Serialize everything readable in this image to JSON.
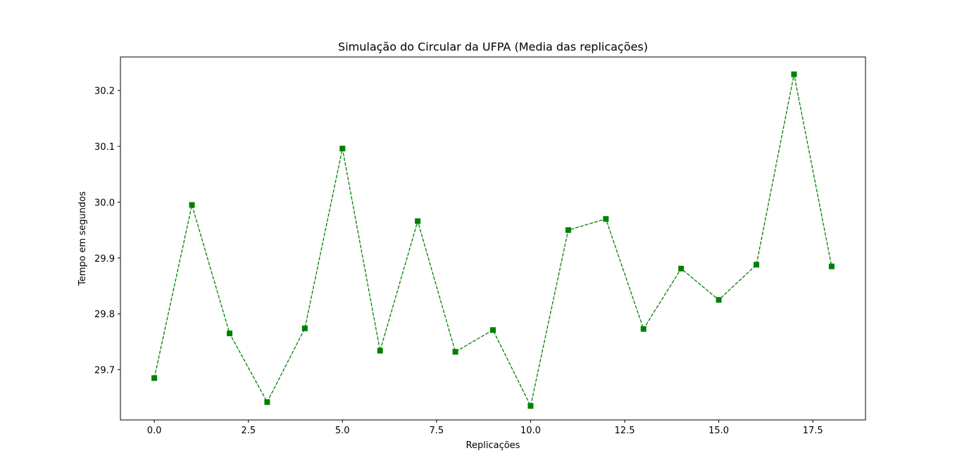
{
  "chart_data": {
    "type": "line",
    "title": "Simulação do Circular da UFPA (Media das replicações)",
    "xlabel": "Replicações",
    "ylabel": "Tempo em segundos",
    "xlim": [
      -0.9,
      18.9
    ],
    "ylim": [
      29.61,
      30.26
    ],
    "xticks": [
      0.0,
      2.5,
      5.0,
      7.5,
      10.0,
      12.5,
      15.0,
      17.5
    ],
    "xtick_labels": [
      "0.0",
      "2.5",
      "5.0",
      "7.5",
      "10.0",
      "12.5",
      "15.0",
      "17.5"
    ],
    "yticks": [
      29.7,
      29.8,
      29.9,
      30.0,
      30.1,
      30.2
    ],
    "ytick_labels": [
      "29.7",
      "29.8",
      "29.9",
      "30.0",
      "30.1",
      "30.2"
    ],
    "grid": false,
    "series": [
      {
        "color": "#008000",
        "line_style": "dashed",
        "marker": "square",
        "x": [
          0,
          1,
          2,
          3,
          4,
          5,
          6,
          7,
          8,
          9,
          10,
          11,
          12,
          13,
          14,
          15,
          16,
          17,
          18
        ],
        "y": [
          29.685,
          29.995,
          29.765,
          29.642,
          29.774,
          30.096,
          29.734,
          29.966,
          29.732,
          29.771,
          29.635,
          29.95,
          29.97,
          29.773,
          29.881,
          29.825,
          29.888,
          30.229,
          29.885
        ]
      }
    ]
  }
}
